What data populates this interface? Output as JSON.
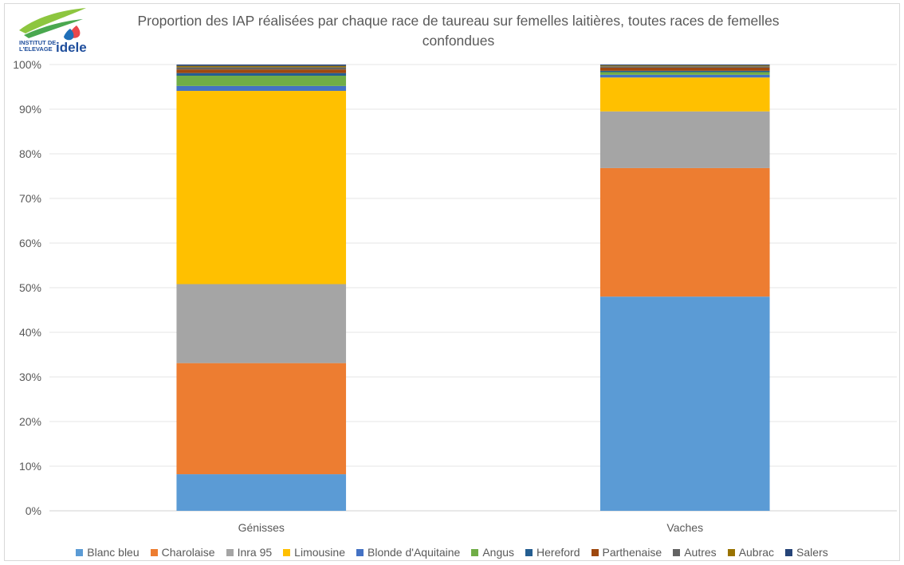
{
  "logo": {
    "line1": "INSTITUT DE",
    "line2": "L'ELEVAGE",
    "brand": "idele"
  },
  "chart_data": {
    "type": "bar",
    "stacked": true,
    "title": "Proportion des IAP réalisées par chaque race de taureau sur femelles laitières,  toutes races de femelles confondues",
    "title_lines": [
      "Proportion des IAP réalisées par chaque race de taureau sur femelles laitières,  toutes races de femelles",
      "confondues"
    ],
    "categories": [
      "Génisses",
      "Vaches"
    ],
    "ylim": [
      0,
      100
    ],
    "yticks": [
      "0%",
      "10%",
      "20%",
      "30%",
      "40%",
      "50%",
      "60%",
      "70%",
      "80%",
      "90%",
      "100%"
    ],
    "grid": true,
    "legend_position": "bottom",
    "series": [
      {
        "name": "Blanc bleu",
        "color": "#5B9BD5",
        "values": [
          8.2,
          48.0
        ]
      },
      {
        "name": "Charolaise",
        "color": "#ED7D31",
        "values": [
          24.9,
          28.8
        ]
      },
      {
        "name": "Inra 95",
        "color": "#A5A5A5",
        "values": [
          17.7,
          12.7
        ]
      },
      {
        "name": "Limousine",
        "color": "#FFC000",
        "values": [
          43.3,
          7.6
        ]
      },
      {
        "name": "Blonde d'Aquitaine",
        "color": "#4472C4",
        "values": [
          1.1,
          0.6
        ]
      },
      {
        "name": "Angus",
        "color": "#70AD47",
        "values": [
          2.3,
          0.6
        ]
      },
      {
        "name": "Hereford",
        "color": "#255E91",
        "values": [
          0.6,
          0.3
        ]
      },
      {
        "name": "Parthenaise",
        "color": "#9E480E",
        "values": [
          0.8,
          0.7
        ]
      },
      {
        "name": "Autres",
        "color": "#636363",
        "values": [
          0.5,
          0.3
        ]
      },
      {
        "name": "Aubrac",
        "color": "#997300",
        "values": [
          0.3,
          0.2
        ]
      },
      {
        "name": "Salers",
        "color": "#264478",
        "values": [
          0.3,
          0.2
        ]
      }
    ]
  }
}
